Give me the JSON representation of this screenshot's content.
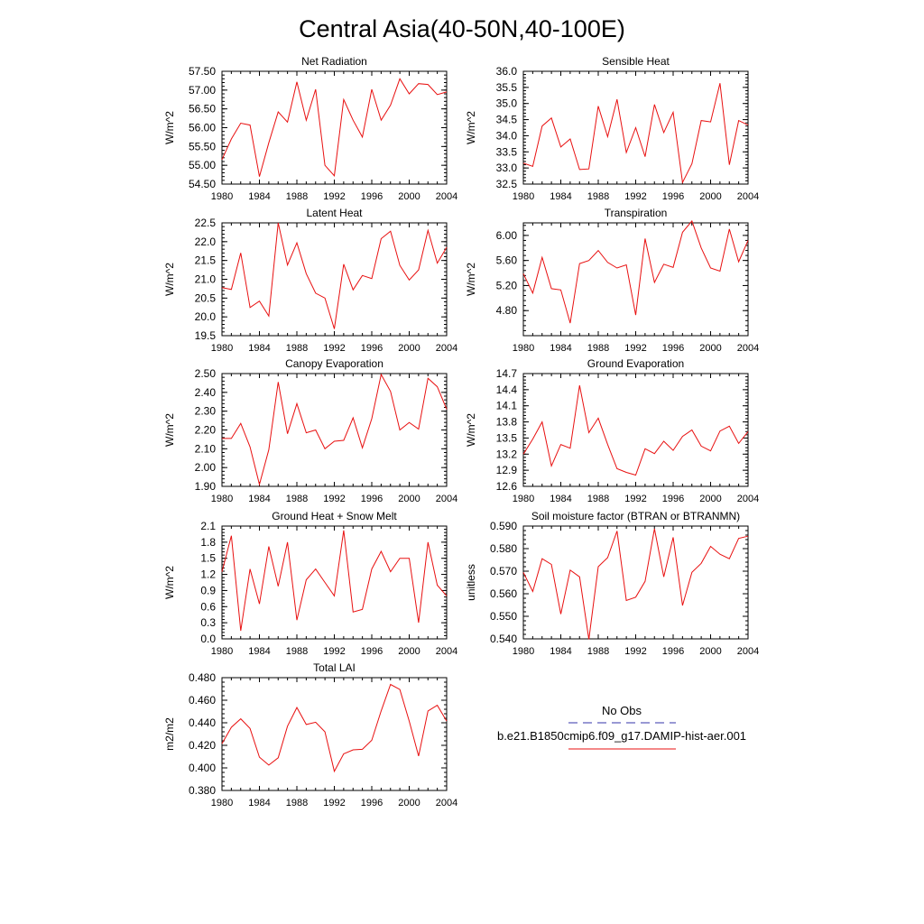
{
  "title": "Central Asia(40-50N,40-100E)",
  "legend": {
    "items": [
      {
        "label": "No Obs",
        "color": "#3333aa",
        "style": "dashed"
      },
      {
        "label": "b.e21.B1850cmip6.f09_g17.DAMIP-hist-aer.001",
        "color": "#e81010",
        "style": "solid"
      }
    ]
  },
  "chart_data": [
    {
      "type": "line",
      "title": "Net Radiation",
      "ylabel": "W/m^2",
      "xlim": [
        1980,
        2004
      ],
      "ylim": [
        54.5,
        57.5
      ],
      "xticks": [
        "1980",
        "1984",
        "1988",
        "1992",
        "1996",
        "2000",
        "2004"
      ],
      "yticks": [
        "54.50",
        "55.00",
        "55.50",
        "56.00",
        "56.50",
        "57.00",
        "57.50"
      ],
      "x": [
        1980,
        1981,
        1982,
        1983,
        1984,
        1985,
        1986,
        1987,
        1988,
        1989,
        1990,
        1991,
        1992,
        1993,
        1994,
        1995,
        1996,
        1997,
        1998,
        1999,
        2000,
        2001,
        2002,
        2003,
        2004
      ],
      "series": [
        {
          "name": "b.e21.B1850cmip6.f09_g17.DAMIP-hist-aer.001",
          "color": "#e81010",
          "values": [
            55.15,
            55.7,
            56.12,
            56.07,
            54.7,
            55.6,
            56.42,
            56.15,
            57.22,
            56.2,
            57.02,
            55.0,
            54.72,
            56.75,
            56.2,
            55.75,
            57.02,
            56.2,
            56.6,
            57.3,
            56.9,
            57.17,
            57.15,
            56.88,
            56.95
          ]
        }
      ]
    },
    {
      "type": "line",
      "title": "Sensible Heat",
      "ylabel": "W/m^2",
      "xlim": [
        1980,
        2004
      ],
      "ylim": [
        32.5,
        36.0
      ],
      "xticks": [
        "1980",
        "1984",
        "1988",
        "1992",
        "1996",
        "2000",
        "2004"
      ],
      "yticks": [
        "32.5",
        "33.0",
        "33.5",
        "34.0",
        "34.5",
        "35.0",
        "35.5",
        "36.0"
      ],
      "x": [
        1980,
        1981,
        1982,
        1983,
        1984,
        1985,
        1986,
        1987,
        1988,
        1989,
        1990,
        1991,
        1992,
        1993,
        1994,
        1995,
        1996,
        1997,
        1998,
        1999,
        2000,
        2001,
        2002,
        2003,
        2004
      ],
      "series": [
        {
          "name": "b.e21.B1850cmip6.f09_g17.DAMIP-hist-aer.001",
          "color": "#e81010",
          "values": [
            33.15,
            33.05,
            34.3,
            34.55,
            33.65,
            33.9,
            32.95,
            32.97,
            34.92,
            33.97,
            35.13,
            33.48,
            34.25,
            33.35,
            34.97,
            34.1,
            34.73,
            32.55,
            33.13,
            34.47,
            34.43,
            35.63,
            33.1,
            34.47,
            34.33
          ]
        }
      ]
    },
    {
      "type": "line",
      "title": "Latent Heat",
      "ylabel": "W/m^2",
      "xlim": [
        1980,
        2004
      ],
      "ylim": [
        19.5,
        22.5
      ],
      "xticks": [
        "1980",
        "1984",
        "1988",
        "1992",
        "1996",
        "2000",
        "2004"
      ],
      "yticks": [
        "19.5",
        "20.0",
        "20.5",
        "21.0",
        "21.5",
        "22.0",
        "22.5"
      ],
      "x": [
        1980,
        1981,
        1982,
        1983,
        1984,
        1985,
        1986,
        1987,
        1988,
        1989,
        1990,
        1991,
        1992,
        1993,
        1994,
        1995,
        1996,
        1997,
        1998,
        1999,
        2000,
        2001,
        2002,
        2003,
        2004
      ],
      "series": [
        {
          "name": "b.e21.B1850cmip6.f09_g17.DAMIP-hist-aer.001",
          "color": "#e81010",
          "values": [
            20.78,
            20.73,
            21.7,
            20.25,
            20.42,
            20.02,
            22.5,
            21.38,
            21.97,
            21.15,
            20.63,
            20.5,
            19.68,
            21.4,
            20.72,
            21.1,
            21.02,
            22.08,
            22.28,
            21.37,
            20.98,
            21.25,
            22.3,
            21.43,
            21.85
          ]
        }
      ]
    },
    {
      "type": "line",
      "title": "Transpiration",
      "ylabel": "W/m^2",
      "xlim": [
        1980,
        2004
      ],
      "ylim": [
        4.4,
        6.2
      ],
      "xticks": [
        "1980",
        "1984",
        "1988",
        "1992",
        "1996",
        "2000",
        "2004"
      ],
      "yticks": [
        "4.80",
        "5.20",
        "5.60",
        "6.00"
      ],
      "ytick_values": [
        4.8,
        5.2,
        5.6,
        6.0
      ],
      "x": [
        1980,
        1981,
        1982,
        1983,
        1984,
        1985,
        1986,
        1987,
        1988,
        1989,
        1990,
        1991,
        1992,
        1993,
        1994,
        1995,
        1996,
        1997,
        1998,
        1999,
        2000,
        2001,
        2002,
        2003,
        2004
      ],
      "series": [
        {
          "name": "b.e21.B1850cmip6.f09_g17.DAMIP-hist-aer.001",
          "color": "#e81010",
          "values": [
            5.39,
            5.08,
            5.65,
            5.15,
            5.13,
            4.6,
            5.55,
            5.6,
            5.76,
            5.57,
            5.48,
            5.53,
            4.73,
            5.95,
            5.25,
            5.54,
            5.49,
            6.05,
            6.23,
            5.8,
            5.48,
            5.43,
            6.1,
            5.58,
            5.92
          ]
        }
      ]
    },
    {
      "type": "line",
      "title": "Canopy Evaporation",
      "ylabel": "W/m^2",
      "xlim": [
        1980,
        2004
      ],
      "ylim": [
        1.9,
        2.5
      ],
      "xticks": [
        "1980",
        "1984",
        "1988",
        "1992",
        "1996",
        "2000",
        "2004"
      ],
      "yticks": [
        "1.90",
        "2.00",
        "2.10",
        "2.20",
        "2.30",
        "2.40",
        "2.50"
      ],
      "x": [
        1980,
        1981,
        1982,
        1983,
        1984,
        1985,
        1986,
        1987,
        1988,
        1989,
        1990,
        1991,
        1992,
        1993,
        1994,
        1995,
        1996,
        1997,
        1998,
        1999,
        2000,
        2001,
        2002,
        2003,
        2004
      ],
      "series": [
        {
          "name": "b.e21.B1850cmip6.f09_g17.DAMIP-hist-aer.001",
          "color": "#e81010",
          "values": [
            2.155,
            2.155,
            2.235,
            2.11,
            1.91,
            2.095,
            2.455,
            2.18,
            2.34,
            2.185,
            2.2,
            2.1,
            2.14,
            2.145,
            2.265,
            2.105,
            2.26,
            2.495,
            2.405,
            2.2,
            2.24,
            2.205,
            2.475,
            2.43,
            2.31
          ]
        }
      ]
    },
    {
      "type": "line",
      "title": "Ground Evaporation",
      "ylabel": "W/m^2",
      "xlim": [
        1980,
        2004
      ],
      "ylim": [
        12.6,
        14.7
      ],
      "xticks": [
        "1980",
        "1984",
        "1988",
        "1992",
        "1996",
        "2000",
        "2004"
      ],
      "yticks": [
        "12.6",
        "12.9",
        "13.2",
        "13.5",
        "13.8",
        "14.1",
        "14.4",
        "14.7"
      ],
      "x": [
        1980,
        1981,
        1982,
        1983,
        1984,
        1985,
        1986,
        1987,
        1988,
        1989,
        1990,
        1991,
        1992,
        1993,
        1994,
        1995,
        1996,
        1997,
        1998,
        1999,
        2000,
        2001,
        2002,
        2003,
        2004
      ],
      "series": [
        {
          "name": "b.e21.B1850cmip6.f09_g17.DAMIP-hist-aer.001",
          "color": "#e81010",
          "values": [
            13.2,
            13.48,
            13.8,
            12.98,
            13.38,
            13.31,
            14.48,
            13.6,
            13.87,
            13.38,
            12.93,
            12.86,
            12.81,
            13.3,
            13.21,
            13.44,
            13.27,
            13.53,
            13.65,
            13.35,
            13.26,
            13.63,
            13.72,
            13.4,
            13.62
          ]
        }
      ]
    },
    {
      "type": "line",
      "title": "Ground Heat + Snow Melt",
      "ylabel": "W/m^2",
      "xlim": [
        1980,
        2004
      ],
      "ylim": [
        0.0,
        2.1
      ],
      "xticks": [
        "1980",
        "1984",
        "1988",
        "1992",
        "1996",
        "2000",
        "2004"
      ],
      "yticks": [
        "0.0",
        "0.3",
        "0.6",
        "0.9",
        "1.2",
        "1.5",
        "1.8",
        "2.1"
      ],
      "x": [
        1980,
        1981,
        1982,
        1983,
        1984,
        1985,
        1986,
        1987,
        1988,
        1989,
        1990,
        1991,
        1992,
        1993,
        1994,
        1995,
        1996,
        1997,
        1998,
        1999,
        2000,
        2001,
        2002,
        2003,
        2004
      ],
      "series": [
        {
          "name": "b.e21.B1850cmip6.f09_g17.DAMIP-hist-aer.001",
          "color": "#e81010",
          "values": [
            1.25,
            1.92,
            0.15,
            1.3,
            0.65,
            1.72,
            0.98,
            1.8,
            0.35,
            1.1,
            1.3,
            1.05,
            0.8,
            2.02,
            0.5,
            0.55,
            1.3,
            1.63,
            1.25,
            1.5,
            1.5,
            0.3,
            1.8,
            1.0,
            0.8
          ]
        }
      ]
    },
    {
      "type": "line",
      "title": "Soil moisture factor (BTRAN or BTRANMN)",
      "ylabel": "unitless",
      "xlim": [
        1980,
        2004
      ],
      "ylim": [
        0.54,
        0.59
      ],
      "xticks": [
        "1980",
        "1984",
        "1988",
        "1992",
        "1996",
        "2000",
        "2004"
      ],
      "yticks": [
        "0.540",
        "0.550",
        "0.560",
        "0.570",
        "0.580",
        "0.590"
      ],
      "x": [
        1980,
        1981,
        1982,
        1983,
        1984,
        1985,
        1986,
        1987,
        1988,
        1989,
        1990,
        1991,
        1992,
        1993,
        1994,
        1995,
        1996,
        1997,
        1998,
        1999,
        2000,
        2001,
        2002,
        2003,
        2004
      ],
      "series": [
        {
          "name": "b.e21.B1850cmip6.f09_g17.DAMIP-hist-aer.001",
          "color": "#e81010",
          "values": [
            0.5695,
            0.561,
            0.5755,
            0.573,
            0.551,
            0.5705,
            0.5675,
            0.5398,
            0.572,
            0.576,
            0.5878,
            0.557,
            0.5585,
            0.5655,
            0.5888,
            0.5675,
            0.585,
            0.5548,
            0.5695,
            0.5735,
            0.581,
            0.5775,
            0.5755,
            0.5845,
            0.5855
          ]
        }
      ]
    },
    {
      "type": "line",
      "title": "Total LAI",
      "ylabel": "m2/m2",
      "xlim": [
        1980,
        2004
      ],
      "ylim": [
        0.38,
        0.48
      ],
      "xticks": [
        "1980",
        "1984",
        "1988",
        "1992",
        "1996",
        "2000",
        "2004"
      ],
      "yticks": [
        "0.380",
        "0.400",
        "0.420",
        "0.440",
        "0.460",
        "0.480"
      ],
      "x": [
        1980,
        1981,
        1982,
        1983,
        1984,
        1985,
        1986,
        1987,
        1988,
        1989,
        1990,
        1991,
        1992,
        1993,
        1994,
        1995,
        1996,
        1997,
        1998,
        1999,
        2000,
        2001,
        2002,
        2003,
        2004
      ],
      "series": [
        {
          "name": "b.e21.B1850cmip6.f09_g17.DAMIP-hist-aer.001",
          "color": "#e81010",
          "values": [
            0.4215,
            0.436,
            0.4435,
            0.435,
            0.4095,
            0.4025,
            0.409,
            0.437,
            0.4535,
            0.4385,
            0.4405,
            0.432,
            0.397,
            0.4125,
            0.416,
            0.4165,
            0.4245,
            0.4505,
            0.474,
            0.4695,
            0.4415,
            0.4105,
            0.4505,
            0.4555,
            0.4415
          ]
        }
      ]
    }
  ]
}
